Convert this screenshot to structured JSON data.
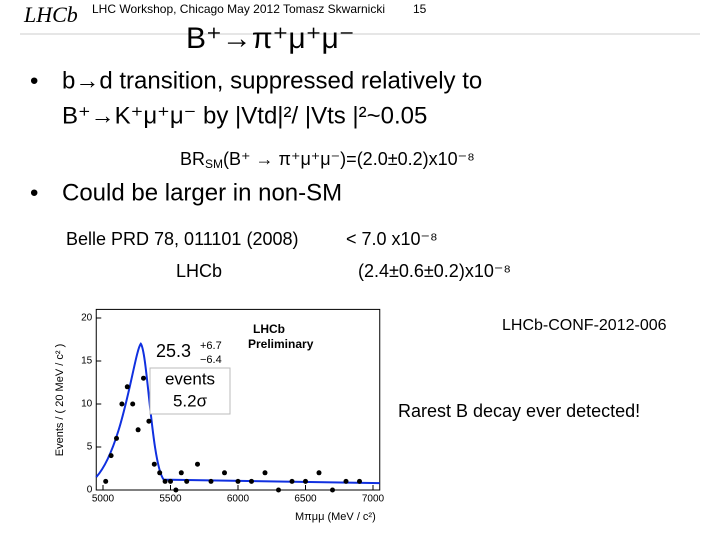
{
  "header": {
    "logo": "LHCb",
    "footer_text": "LHC Workshop, Chicago May 2012 Tomasz Skwarnicki",
    "page": "15"
  },
  "title": "B⁺→π⁺μ⁺μ⁻",
  "bullets": [
    {
      "lines": [
        "b→d transition, suppressed relatively to",
        "B⁺→K⁺μ⁺μ⁻ by |Vtd|²/ |Vts |²~0.05"
      ],
      "note": {
        "prefix": "BR",
        "sub": "SM",
        "rest": "(B⁺ → π⁺μ⁺μ⁻)=(2.0±0.2)x10⁻⁸"
      }
    },
    {
      "lines": [
        "Could be larger in non-SM"
      ]
    }
  ],
  "results": [
    {
      "source": "Belle PRD 78, 011101 (2008)",
      "value": "< 7.0 x10⁻⁸"
    },
    {
      "source": "LHCb",
      "value": "(2.4±0.6±0.2)x10⁻⁸"
    }
  ],
  "reference": "LHCb-CONF-2012-006",
  "remark": "Rarest B decay ever detected!",
  "figure": {
    "x_label": "Mπμμ (MeV / c²)",
    "y_label": "Events / ( 20 MeV / c² )",
    "yield": "25.3",
    "err_up": "+6.7",
    "err_down": "−6.4",
    "events": "events",
    "significance": "5.2σ",
    "logo": "LHCb",
    "logo_sub": "Preliminary",
    "xlim": [
      4950,
      7050
    ],
    "ylim": [
      0,
      21
    ],
    "xticks": [
      5000,
      5500,
      6000,
      6500,
      7000
    ],
    "yticks": [
      0,
      5,
      10,
      15,
      20
    ],
    "points": {
      "x": [
        5020,
        5060,
        5100,
        5140,
        5180,
        5220,
        5260,
        5300,
        5340,
        5380,
        5420,
        5460,
        5500,
        5540,
        5580,
        5620,
        5700,
        5800,
        5900,
        6000,
        6100,
        6200,
        6300,
        6400,
        6500,
        6600,
        6700,
        6800,
        6900
      ],
      "y": [
        1,
        4,
        6,
        10,
        12,
        10,
        7,
        13,
        8,
        3,
        2,
        1,
        1,
        0,
        2,
        1,
        3,
        1,
        2,
        1,
        1,
        2,
        0,
        1,
        1,
        2,
        0,
        1,
        1
      ]
    }
  }
}
